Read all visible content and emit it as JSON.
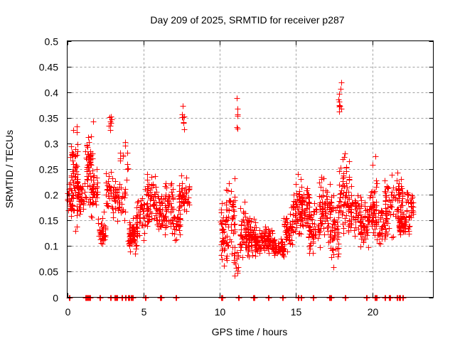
{
  "chart_data": {
    "type": "scatter",
    "title": "Day 209 of 2025, SRMTID for receiver p287",
    "xlabel": "GPS time / hours",
    "ylabel": "SRMTID / TECUs",
    "xlim": [
      0,
      24
    ],
    "ylim": [
      0,
      0.5
    ],
    "xticks": [
      0,
      5,
      10,
      15,
      20
    ],
    "xtick_labels": [
      "0",
      "5",
      "10",
      "15",
      "20"
    ],
    "yticks": [
      0,
      0.05,
      0.1,
      0.15,
      0.2,
      0.25,
      0.3,
      0.35,
      0.4,
      0.45,
      0.5
    ],
    "ytick_labels": [
      "0",
      "0.05",
      "0.1",
      "0.15",
      "0.2",
      "0.25",
      "0.3",
      "0.35",
      "0.4",
      "0.45",
      "0.5"
    ],
    "grid": true,
    "legend": "none",
    "marker": "plus",
    "color": "#ff0000",
    "zero_points_x": [
      0.1,
      1.2,
      1.35,
      1.45,
      2.1,
      2.8,
      3.1,
      3.2,
      3.55,
      3.8,
      4.0,
      4.15,
      4.25,
      5.1,
      6.1,
      7.1,
      10.1,
      11.2,
      12.2,
      13.15,
      14.1,
      15.1,
      15.3,
      16.1,
      17.15,
      17.25,
      18.2,
      19.6,
      20.15,
      20.25,
      20.8,
      21.1,
      21.6,
      21.75,
      21.95
    ],
    "clusters": [
      {
        "x": [
          0.0,
          0.5
        ],
        "y": [
          0.13,
          0.24
        ],
        "n": 25
      },
      {
        "x": [
          0.2,
          0.7
        ],
        "y": [
          0.11,
          0.36
        ],
        "n": 60
      },
      {
        "x": [
          0.6,
          1.2
        ],
        "y": [
          0.14,
          0.25
        ],
        "n": 45
      },
      {
        "x": [
          1.2,
          1.7
        ],
        "y": [
          0.14,
          0.36
        ],
        "n": 60
      },
      {
        "x": [
          1.6,
          2.0
        ],
        "y": [
          0.15,
          0.28
        ],
        "n": 30
      },
      {
        "x": [
          2.0,
          2.5
        ],
        "y": [
          0.09,
          0.17
        ],
        "n": 40
      },
      {
        "x": [
          2.5,
          3.2
        ],
        "y": [
          0.15,
          0.26
        ],
        "n": 40
      },
      {
        "x": [
          2.7,
          2.9
        ],
        "y": [
          0.29,
          0.39
        ],
        "n": 8
      },
      {
        "x": [
          3.0,
          3.8
        ],
        "y": [
          0.12,
          0.24
        ],
        "n": 40
      },
      {
        "x": [
          3.4,
          4.0
        ],
        "y": [
          0.19,
          0.34
        ],
        "n": 12
      },
      {
        "x": [
          4.0,
          4.6
        ],
        "y": [
          0.08,
          0.16
        ],
        "n": 70
      },
      {
        "x": [
          4.5,
          5.3
        ],
        "y": [
          0.1,
          0.22
        ],
        "n": 50
      },
      {
        "x": [
          5.2,
          5.8
        ],
        "y": [
          0.12,
          0.26
        ],
        "n": 45
      },
      {
        "x": [
          5.8,
          6.5
        ],
        "y": [
          0.11,
          0.22
        ],
        "n": 50
      },
      {
        "x": [
          6.4,
          7.0
        ],
        "y": [
          0.1,
          0.25
        ],
        "n": 45
      },
      {
        "x": [
          7.0,
          7.4
        ],
        "y": [
          0.1,
          0.19
        ],
        "n": 25
      },
      {
        "x": [
          7.3,
          8.0
        ],
        "y": [
          0.15,
          0.25
        ],
        "n": 50
      },
      {
        "x": [
          7.5,
          7.7
        ],
        "y": [
          0.28,
          0.4
        ],
        "n": 8
      },
      {
        "x": [
          10.0,
          10.5
        ],
        "y": [
          0.04,
          0.2
        ],
        "n": 40
      },
      {
        "x": [
          10.4,
          11.0
        ],
        "y": [
          0.05,
          0.26
        ],
        "n": 50
      },
      {
        "x": [
          10.9,
          11.2
        ],
        "y": [
          0.03,
          0.12
        ],
        "n": 15
      },
      {
        "x": [
          11.1,
          11.2
        ],
        "y": [
          0.29,
          0.43
        ],
        "n": 6
      },
      {
        "x": [
          11.3,
          11.9
        ],
        "y": [
          0.05,
          0.2
        ],
        "n": 50
      },
      {
        "x": [
          11.8,
          12.4
        ],
        "y": [
          0.06,
          0.17
        ],
        "n": 55
      },
      {
        "x": [
          12.3,
          13.0
        ],
        "y": [
          0.08,
          0.15
        ],
        "n": 60
      },
      {
        "x": [
          13.0,
          13.6
        ],
        "y": [
          0.08,
          0.15
        ],
        "n": 50
      },
      {
        "x": [
          13.5,
          14.2
        ],
        "y": [
          0.07,
          0.12
        ],
        "n": 50
      },
      {
        "x": [
          14.2,
          14.8
        ],
        "y": [
          0.08,
          0.18
        ],
        "n": 45
      },
      {
        "x": [
          14.7,
          15.3
        ],
        "y": [
          0.08,
          0.25
        ],
        "n": 50
      },
      {
        "x": [
          15.2,
          15.9
        ],
        "y": [
          0.1,
          0.24
        ],
        "n": 60
      },
      {
        "x": [
          15.8,
          16.6
        ],
        "y": [
          0.07,
          0.2
        ],
        "n": 60
      },
      {
        "x": [
          16.5,
          17.3
        ],
        "y": [
          0.09,
          0.25
        ],
        "n": 60
      },
      {
        "x": [
          17.2,
          17.8
        ],
        "y": [
          0.05,
          0.22
        ],
        "n": 55
      },
      {
        "x": [
          17.8,
          18.0
        ],
        "y": [
          0.3,
          0.46
        ],
        "n": 10
      },
      {
        "x": [
          17.8,
          18.5
        ],
        "y": [
          0.1,
          0.31
        ],
        "n": 60
      },
      {
        "x": [
          18.4,
          19.3
        ],
        "y": [
          0.09,
          0.23
        ],
        "n": 60
      },
      {
        "x": [
          19.2,
          19.8
        ],
        "y": [
          0.08,
          0.2
        ],
        "n": 50
      },
      {
        "x": [
          19.8,
          20.3
        ],
        "y": [
          0.11,
          0.22
        ],
        "n": 40
      },
      {
        "x": [
          20.0,
          20.3
        ],
        "y": [
          0.08,
          0.33
        ],
        "n": 10
      },
      {
        "x": [
          20.3,
          20.9
        ],
        "y": [
          0.09,
          0.19
        ],
        "n": 40
      },
      {
        "x": [
          20.8,
          21.4
        ],
        "y": [
          0.08,
          0.28
        ],
        "n": 45
      },
      {
        "x": [
          21.5,
          22.0
        ],
        "y": [
          0.11,
          0.27
        ],
        "n": 45
      },
      {
        "x": [
          21.7,
          22.2
        ],
        "y": [
          0.11,
          0.18
        ],
        "n": 50
      },
      {
        "x": [
          22.2,
          22.7
        ],
        "y": [
          0.12,
          0.23
        ],
        "n": 35
      }
    ]
  }
}
